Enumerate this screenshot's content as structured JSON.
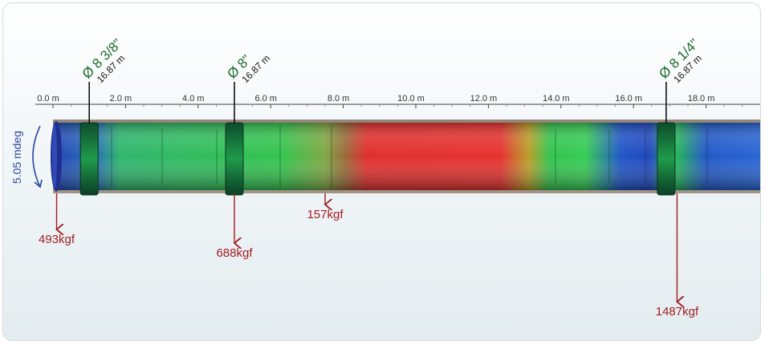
{
  "axis": {
    "unit": "m",
    "ticks": [
      "0.0 m",
      "2.0 m",
      "4.0 m",
      "6.0 m",
      "8.0 m",
      "10.0 m",
      "12.0 m",
      "14.0 m",
      "16.0 m",
      "18.0 m"
    ]
  },
  "rotation": {
    "label": "5.05 mdeg"
  },
  "stabilizers": [
    {
      "diameter": "Ø 8 3/8\"",
      "position_m": 1.0,
      "depth": "16.87 m"
    },
    {
      "diameter": "Ø 8\"",
      "position_m": 5.0,
      "depth": "16.87 m"
    },
    {
      "diameter": "Ø 8 1/4\"",
      "position_m": 16.9,
      "depth": "16.87 m"
    }
  ],
  "forces": [
    {
      "label": "493kgf",
      "position_m": 0.1,
      "magnitude_kgf": 493
    },
    {
      "label": "688kgf",
      "position_m": 5.0,
      "magnitude_kgf": 688
    },
    {
      "label": "157kgf",
      "position_m": 7.5,
      "magnitude_kgf": 157
    },
    {
      "label": "1487kgf",
      "position_m": 17.2,
      "magnitude_kgf": 1487
    }
  ],
  "colors": {
    "stabilizer_label": "#1e6b2c",
    "depth_label": "#111111",
    "force": "#a11d22",
    "rotation": "#2b47a0",
    "axis": "#444444"
  }
}
